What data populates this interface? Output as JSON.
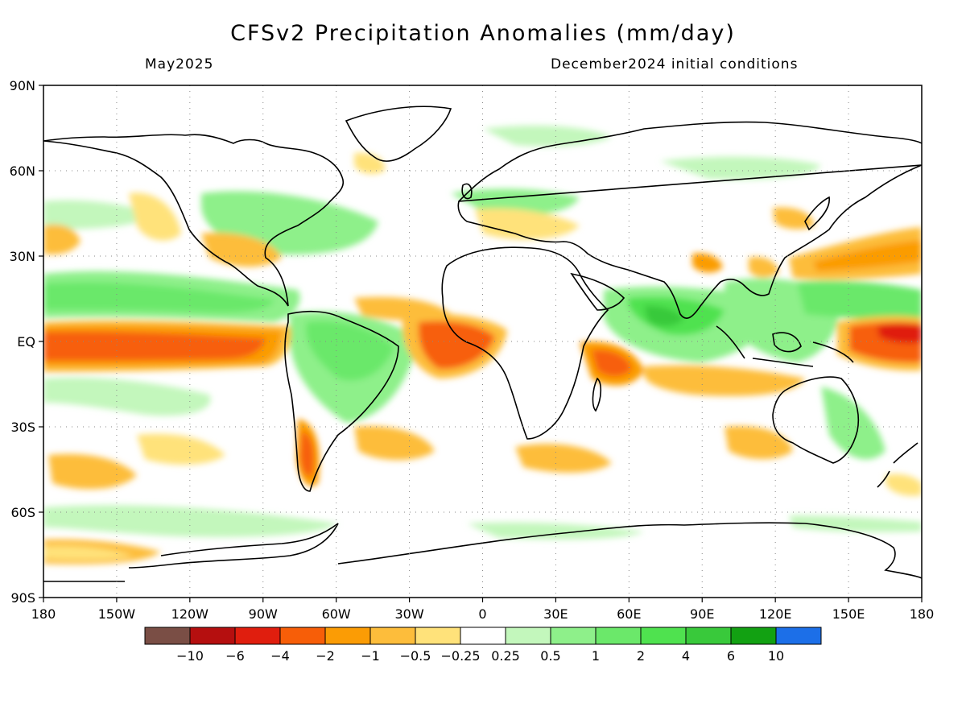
{
  "title": "CFSv2 Precipitation Anomalies (mm/day)",
  "valid_month": "May2025",
  "initial_conditions": "December2024 initial conditions",
  "lat_labels": [
    "90N",
    "60N",
    "30N",
    "EQ",
    "30S",
    "60S",
    "90S"
  ],
  "lon_labels": [
    "180",
    "150W",
    "120W",
    "90W",
    "60W",
    "30W",
    "0",
    "30E",
    "60E",
    "90E",
    "120E",
    "150E",
    "180"
  ],
  "colorbar": {
    "colors": [
      "#7a4e45",
      "#b50f0f",
      "#e01e0e",
      "#f75e08",
      "#fb9c05",
      "#fdbd3b",
      "#ffe27a",
      "#ffffff",
      "#c3f7bc",
      "#8ef08a",
      "#6be86a",
      "#4fe24f",
      "#39c93b",
      "#12a112",
      "#1c6fe8"
    ],
    "labels": [
      "−10",
      "−6",
      "−4",
      "−2",
      "−1",
      "−0.5",
      "−0.25",
      "0.25",
      "0.5",
      "1",
      "2",
      "4",
      "6",
      "10"
    ]
  },
  "map_data": {
    "projection": "equirectangular",
    "lon_range": [
      -180,
      180
    ],
    "lat_range": [
      -90,
      90
    ],
    "grid": "dotted every 30 degrees",
    "anomaly_regions": [
      {
        "name": "Equatorial central Pacific (western half)",
        "lon": [
          -180,
          -120
        ],
        "lat": [
          -6,
          5
        ],
        "value": -2.5
      },
      {
        "name": "Equatorial eastern Pacific",
        "lon": [
          -120,
          -80
        ],
        "lat": [
          -5,
          3
        ],
        "value": -2
      },
      {
        "name": "West Pacific equatorial",
        "lon": [
          150,
          180
        ],
        "lat": [
          -8,
          5
        ],
        "value": -3
      },
      {
        "name": "Equatorial Atlantic / Gulf of Guinea",
        "lon": [
          -20,
          10
        ],
        "lat": [
          -7,
          6
        ],
        "value": -2
      },
      {
        "name": "Western Indian Ocean",
        "lon": [
          40,
          60
        ],
        "lat": [
          -12,
          0
        ],
        "value": -2
      },
      {
        "name": "Pacific ITCZ north",
        "lon": [
          -180,
          -90
        ],
        "lat": [
          5,
          15
        ],
        "value": 1.5
      },
      {
        "name": "Central Indian Ocean",
        "lon": [
          60,
          95
        ],
        "lat": [
          -2,
          12
        ],
        "value": 3
      },
      {
        "name": "Maritime Continent",
        "lon": [
          95,
          140
        ],
        "lat": [
          -5,
          10
        ],
        "value": 1.5
      },
      {
        "name": "Northwest Pacific subtropics",
        "lon": [
          140,
          180
        ],
        "lat": [
          22,
          35
        ],
        "value": -1
      },
      {
        "name": "Southeast Pacific",
        "lon": [
          -175,
          -120
        ],
        "lat": [
          -50,
          -40
        ],
        "value": -0.75
      },
      {
        "name": "Southern Ocean Pacific sector",
        "lon": [
          -180,
          -120
        ],
        "lat": [
          -75,
          -68
        ],
        "value": -0.75
      },
      {
        "name": "Argentina",
        "lon": [
          -75,
          -65
        ],
        "lat": [
          -45,
          -30
        ],
        "value": -1.5
      }
    ]
  }
}
